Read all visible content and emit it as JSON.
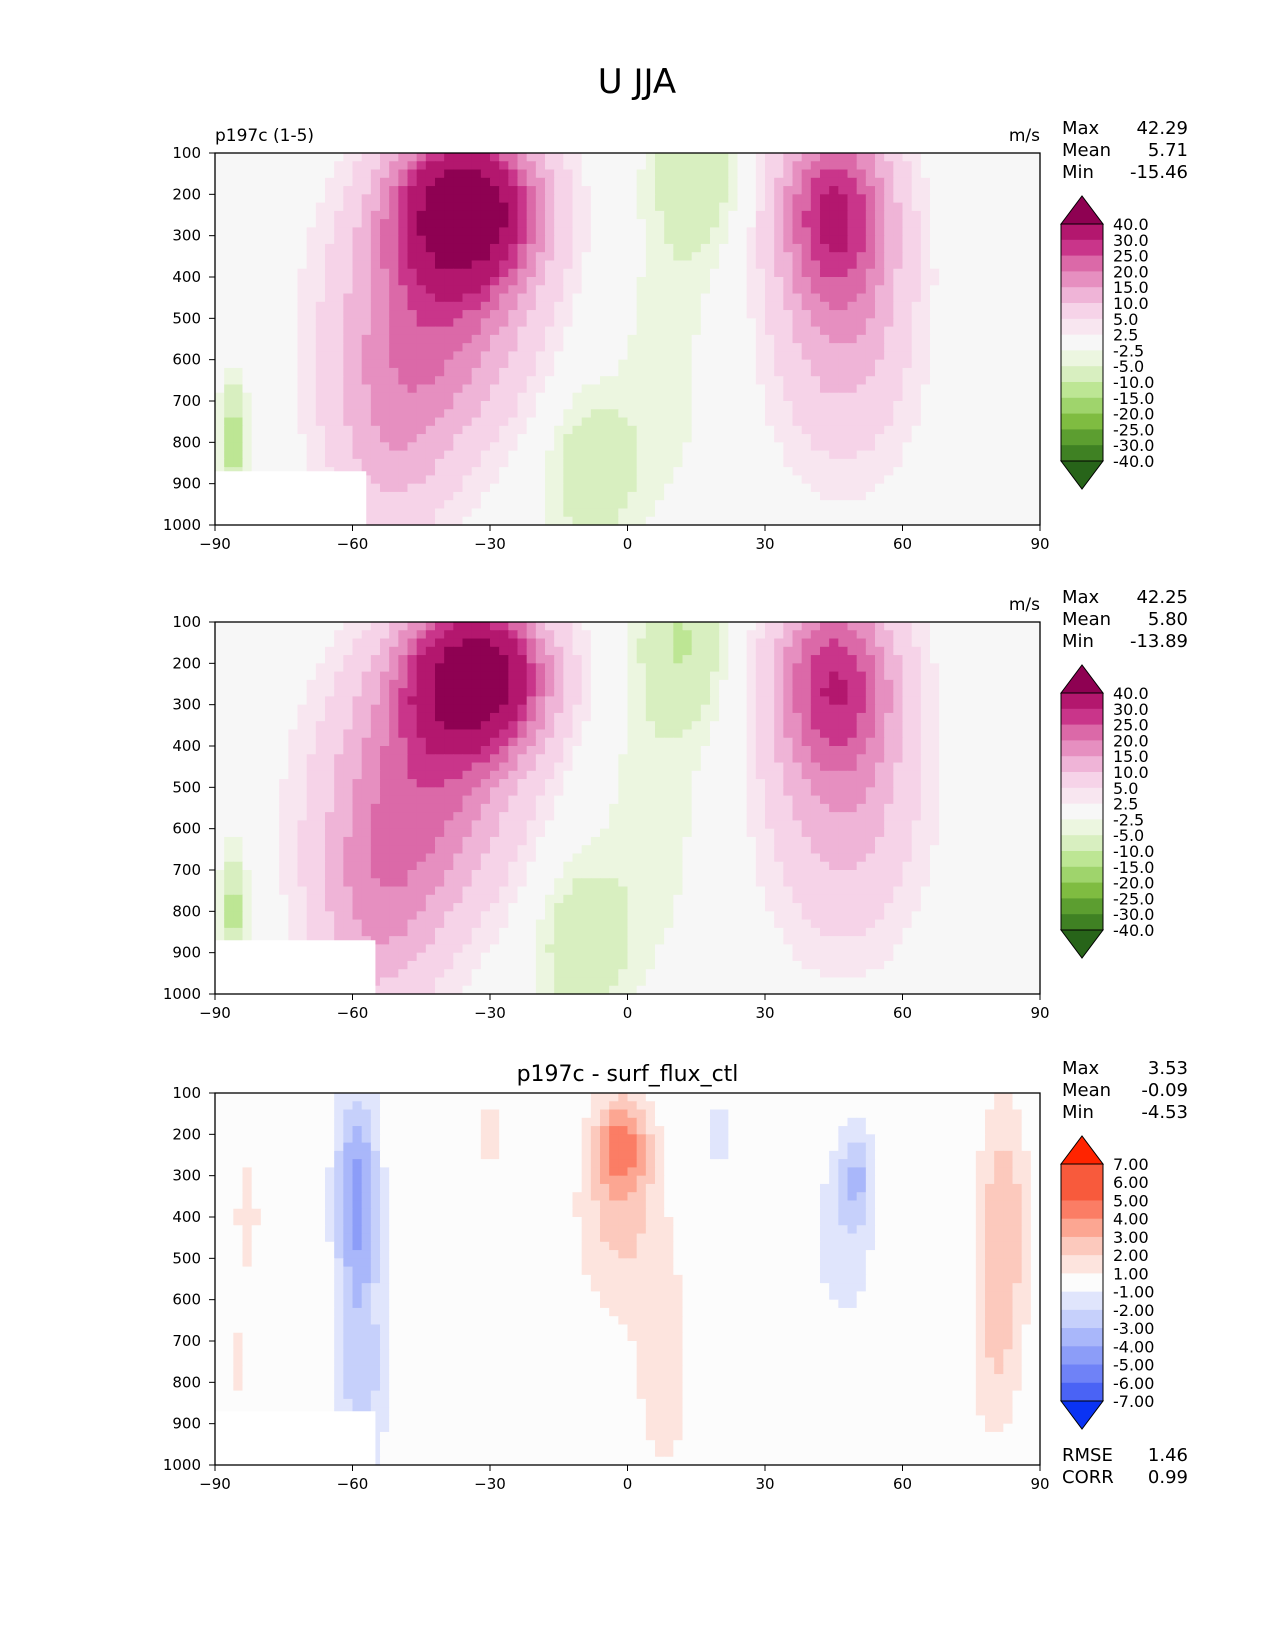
{
  "figure_title": "U JJA",
  "colors": {
    "mod_plus": [
      "#8e0152",
      "#b3176e",
      "#c9358a",
      "#db69a8",
      "#e68fc0",
      "#efb4d7",
      "#f6d3e8",
      "#f8e6f0"
    ],
    "mod_neutral": [
      "#f7f7f7",
      "#f7f7f7"
    ],
    "mod_minus": [
      "#ecf6e0",
      "#d8efc0",
      "#bde694",
      "#9fd46c",
      "#7fbc41",
      "#5c9e30",
      "#3f8123",
      "#276419"
    ],
    "diff_plus": [
      "#fde4de",
      "#fcc9bd",
      "#fca692",
      "#fb7d65",
      "#f85a3c",
      "#ff2400"
    ],
    "diff_neutral": "#fcfcfc",
    "diff_minus": [
      "#e0e5fc",
      "#c6d0fb",
      "#a9b7fa",
      "#8c9df8",
      "#6f82f7",
      "#4a63f5",
      "#0a33f3"
    ],
    "missing": "#ffffff"
  },
  "chart_data": [
    {
      "type": "heatmap",
      "title": "p197c (1-5)",
      "units": "m/s",
      "stats": {
        "max_label": "Max",
        "max": "42.29",
        "mean_label": "Mean",
        "mean": "5.71",
        "min_label": "Min",
        "min": "-15.46"
      },
      "xlim": [
        -90,
        90
      ],
      "ylim": [
        1000,
        100
      ],
      "xticks": [
        "−90",
        "−60",
        "−30",
        "0",
        "30",
        "60",
        "90"
      ],
      "yticks": [
        "100",
        "200",
        "300",
        "400",
        "500",
        "600",
        "700",
        "800",
        "900",
        "1000"
      ],
      "colorbar_levels": [
        "40.0",
        "30.0",
        "25.0",
        "20.0",
        "15.0",
        "10.0",
        "5.0",
        "2.5",
        "-2.5",
        "-5.0",
        "-10.0",
        "-15.0",
        "-20.0",
        "-25.0",
        "-30.0",
        "-40.0"
      ],
      "features": [
        {
          "lat": -35,
          "p": 230,
          "amp": 46,
          "slat": 15,
          "sp": 180
        },
        {
          "lat": -42,
          "p": 480,
          "amp": 21,
          "slat": 20,
          "sp": 300
        },
        {
          "lat": -52,
          "p": 800,
          "amp": 10,
          "slat": 14,
          "sp": 260
        },
        {
          "lat": 45,
          "p": 230,
          "amp": 25,
          "slat": 12,
          "sp": 220
        },
        {
          "lat": 47,
          "p": 500,
          "amp": 13,
          "slat": 15,
          "sp": 350
        },
        {
          "lat": 15,
          "p": 140,
          "amp": -9,
          "slat": 10,
          "sp": 220
        },
        {
          "lat": -8,
          "p": 870,
          "amp": -9,
          "slat": 10,
          "sp": 200
        },
        {
          "lat": 8,
          "p": 620,
          "amp": -4,
          "slat": 10,
          "sp": 350
        },
        {
          "lat": -86,
          "p": 800,
          "amp": -13,
          "slat": 3,
          "sp": 150
        }
      ],
      "missing_region": {
        "lat": [
          -90,
          -57
        ],
        "p": [
          870,
          1000
        ]
      }
    },
    {
      "type": "heatmap",
      "title": "",
      "units": "m/s",
      "stats": {
        "max_label": "Max",
        "max": "42.25",
        "mean_label": "Mean",
        "mean": "5.80",
        "min_label": "Min",
        "min": "-13.89"
      },
      "xlim": [
        -90,
        90
      ],
      "ylim": [
        1000,
        100
      ],
      "xticks": [
        "−90",
        "−60",
        "−30",
        "0",
        "30",
        "60",
        "90"
      ],
      "yticks": [
        "100",
        "200",
        "300",
        "400",
        "500",
        "600",
        "700",
        "800",
        "900",
        "1000"
      ],
      "colorbar_levels": [
        "40.0",
        "30.0",
        "25.0",
        "20.0",
        "15.0",
        "10.0",
        "5.0",
        "2.5",
        "-2.5",
        "-5.0",
        "-10.0",
        "-15.0",
        "-20.0",
        "-25.0",
        "-30.0",
        "-40.0"
      ],
      "features": [
        {
          "lat": -33,
          "p": 230,
          "amp": 46,
          "slat": 15,
          "sp": 180
        },
        {
          "lat": -45,
          "p": 500,
          "amp": 21,
          "slat": 20,
          "sp": 300
        },
        {
          "lat": -55,
          "p": 820,
          "amp": 12,
          "slat": 14,
          "sp": 260
        },
        {
          "lat": 45,
          "p": 230,
          "amp": 24,
          "slat": 13,
          "sp": 220
        },
        {
          "lat": 47,
          "p": 520,
          "amp": 13,
          "slat": 16,
          "sp": 350
        },
        {
          "lat": 12,
          "p": 140,
          "amp": -10,
          "slat": 10,
          "sp": 220
        },
        {
          "lat": -10,
          "p": 880,
          "amp": -9,
          "slat": 10,
          "sp": 200
        },
        {
          "lat": 5,
          "p": 600,
          "amp": -4,
          "slat": 12,
          "sp": 350
        },
        {
          "lat": -86,
          "p": 800,
          "amp": -12,
          "slat": 3,
          "sp": 150
        }
      ],
      "missing_region": {
        "lat": [
          -90,
          -55
        ],
        "p": [
          870,
          1000
        ]
      }
    },
    {
      "type": "heatmap",
      "title": "p197c - surf_flux_ctl",
      "units": "",
      "stats": {
        "max_label": "Max",
        "max": "3.53",
        "mean_label": "Mean",
        "mean": "-0.09",
        "min_label": "Min",
        "min": "-4.53"
      },
      "extra_stats": {
        "rmse_label": "RMSE",
        "rmse": "1.46",
        "corr_label": "CORR",
        "corr": "0.99"
      },
      "xlim": [
        -90,
        90
      ],
      "ylim": [
        1000,
        100
      ],
      "xticks": [
        "−90",
        "−60",
        "−30",
        "0",
        "30",
        "60",
        "90"
      ],
      "yticks": [
        "100",
        "200",
        "300",
        "400",
        "500",
        "600",
        "700",
        "800",
        "900",
        "1000"
      ],
      "colorbar_levels": [
        "7.00",
        "6.00",
        "5.00",
        "4.00",
        "3.00",
        "2.00",
        "1.00",
        "-1.00",
        "-2.00",
        "-3.00",
        "-4.00",
        "-5.00",
        "-6.00",
        "-7.00"
      ],
      "features": [
        {
          "lat": -59,
          "p": 350,
          "amp": -4.5,
          "slat": 5,
          "sp": 260
        },
        {
          "lat": -58,
          "p": 800,
          "amp": -2.5,
          "slat": 6,
          "sp": 250
        },
        {
          "lat": 50,
          "p": 300,
          "amp": -2.4,
          "slat": 3.5,
          "sp": 120
        },
        {
          "lat": 47,
          "p": 450,
          "amp": -1.6,
          "slat": 8,
          "sp": 250
        },
        {
          "lat": 20,
          "p": 200,
          "amp": -1.5,
          "slat": 4,
          "sp": 100
        },
        {
          "lat": -1,
          "p": 220,
          "amp": 3.5,
          "slat": 6,
          "sp": 120
        },
        {
          "lat": -2,
          "p": 400,
          "amp": 2.2,
          "slat": 10,
          "sp": 250
        },
        {
          "lat": 8,
          "p": 780,
          "amp": 1.6,
          "slat": 7,
          "sp": 300
        },
        {
          "lat": 82,
          "p": 400,
          "amp": 2.7,
          "slat": 6,
          "sp": 300
        },
        {
          "lat": 80,
          "p": 750,
          "amp": 1.5,
          "slat": 6,
          "sp": 250
        },
        {
          "lat": -83,
          "p": 400,
          "amp": 1.6,
          "slat": 3,
          "sp": 180
        },
        {
          "lat": -30,
          "p": 200,
          "amp": 1.5,
          "slat": 4,
          "sp": 100
        },
        {
          "lat": -85,
          "p": 750,
          "amp": 1.3,
          "slat": 3,
          "sp": 120
        }
      ],
      "missing_region": {
        "lat": [
          -90,
          -55
        ],
        "p": [
          870,
          1000
        ]
      }
    }
  ]
}
